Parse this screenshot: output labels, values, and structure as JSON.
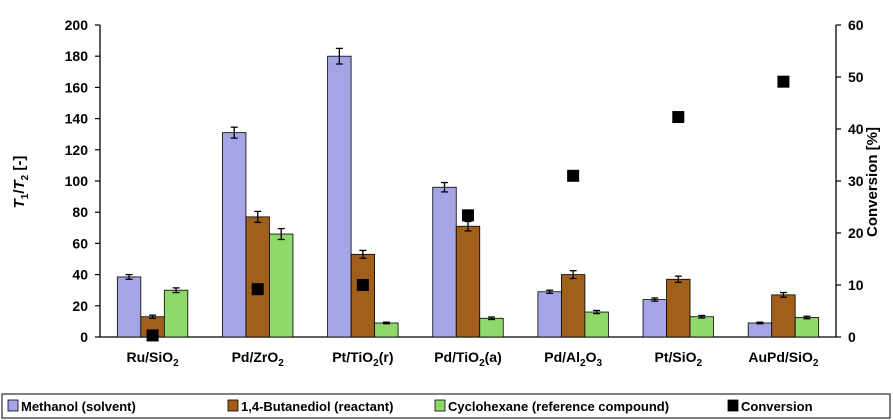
{
  "chart_data": {
    "type": "bar",
    "categories": [
      {
        "main": "Ru/SiO",
        "sub": "2",
        "tail": ""
      },
      {
        "main": "Pd/ZrO",
        "sub": "2",
        "tail": ""
      },
      {
        "main": "Pt/TiO",
        "sub": "2",
        "tail": "(r)"
      },
      {
        "main": "Pd/TiO",
        "sub": "2",
        "tail": "(a)"
      },
      {
        "main": "Pd/Al",
        "sub": "2",
        "tail": "O",
        "sub2": "3"
      },
      {
        "main": "Pt/SiO",
        "sub": "2",
        "tail": ""
      },
      {
        "main": "AuPd/SiO",
        "sub": "2",
        "tail": ""
      }
    ],
    "series": [
      {
        "name": "Methanol (solvent)",
        "color": "#a5a5e6",
        "values": [
          38.5,
          131,
          180,
          96,
          29,
          24,
          9
        ],
        "errors": [
          1.5,
          3.5,
          5,
          3,
          1,
          1,
          0.5
        ]
      },
      {
        "name": "1,4-Butanediol (reactant)",
        "color": "#a0601c",
        "values": [
          13,
          77,
          53,
          71,
          40,
          37,
          27
        ],
        "errors": [
          1,
          3.5,
          2.5,
          3,
          2.5,
          2,
          1.5
        ]
      },
      {
        "name": "Cyclohexane (reference compound)",
        "color": "#8fd86b",
        "values": [
          30,
          66,
          9,
          12,
          16,
          13,
          12.5
        ],
        "errors": [
          1.5,
          3.5,
          0.5,
          0.8,
          1,
          0.8,
          0.8
        ]
      }
    ],
    "conversion": {
      "name": "Conversion",
      "color": "#000000",
      "values": [
        0.3,
        9.2,
        10,
        23.4,
        31,
        42.3,
        49.1
      ]
    },
    "y_left": {
      "label_T": "T",
      "label_1": "1",
      "label_slash": "/",
      "label_T2": "T",
      "label_2": "2",
      "label_unit": " [-]",
      "min": 0,
      "max": 200,
      "step": 20
    },
    "y_right": {
      "label": "Conversion [%]",
      "min": 0,
      "max": 60,
      "step": 10
    },
    "legend_position": "bottom"
  }
}
